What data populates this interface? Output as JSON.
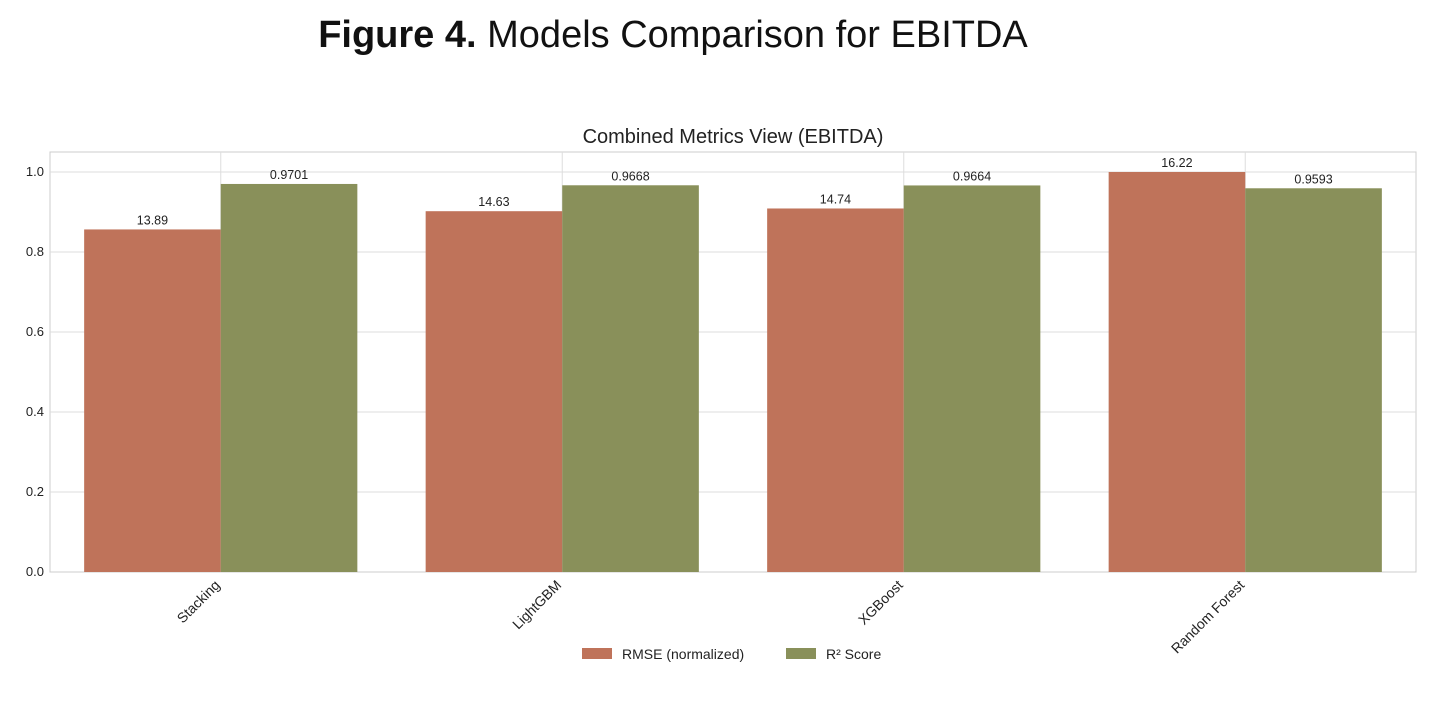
{
  "figure_title": {
    "label": "Figure 4.",
    "text": "Models Comparison for EBITDA"
  },
  "chart_data": {
    "type": "bar",
    "title": "Combined Metrics View (EBITDA)",
    "xlabel": "",
    "ylabel": "",
    "ylim": [
      0,
      1.05
    ],
    "yticks": [
      0.0,
      0.2,
      0.4,
      0.6,
      0.8,
      1.0
    ],
    "grid": true,
    "legend_position": "bottom-center",
    "categories": [
      "Stacking",
      "LightGBM",
      "XGBoost",
      "Random Forest"
    ],
    "series": [
      {
        "name": "RMSE (normalized)",
        "color": "#bf735a",
        "values": [
          0.8564,
          0.902,
          0.9088,
          1.0
        ],
        "labels": [
          "13.89",
          "14.63",
          "14.74",
          "16.22"
        ]
      },
      {
        "name": "R² Score",
        "color": "#89905a",
        "values": [
          0.9701,
          0.9668,
          0.9664,
          0.9593
        ],
        "labels": [
          "0.9701",
          "0.9668",
          "0.9664",
          "0.9593"
        ]
      }
    ]
  }
}
